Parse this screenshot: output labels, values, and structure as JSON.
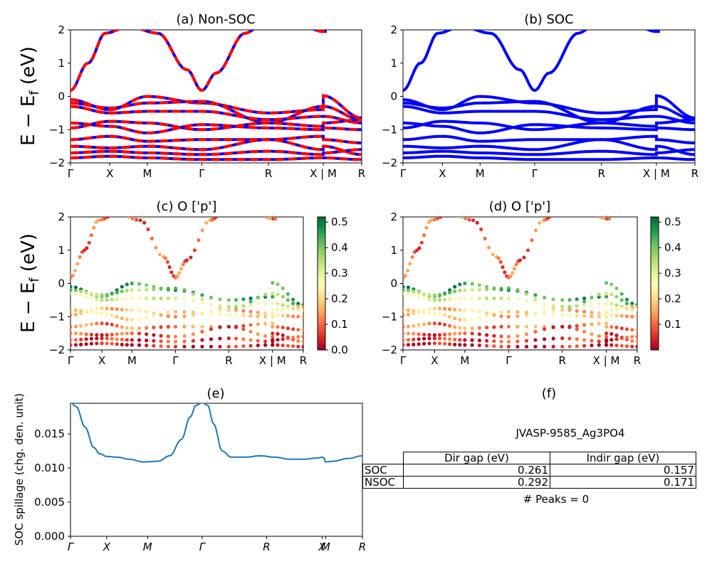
{
  "chart_data": [
    {
      "type": "line",
      "title": "(a) Non-SOC",
      "ylabel": "E − E_f (eV)",
      "ylim": [
        -2,
        2
      ],
      "yticks": [
        "−2",
        "−1",
        "0",
        "1",
        "2"
      ],
      "xticks": [
        "Γ",
        "X",
        "M",
        "Γ",
        "R",
        "X | M",
        "R"
      ],
      "kpath_fraction": [
        0,
        0.135,
        0.264,
        0.451,
        0.68,
        0.868,
        1.0
      ],
      "colors": [
        "#ff0000",
        "#0000ff"
      ],
      "style": "red and blue dashed overlapping bands",
      "bands": [
        {
          "name": "conduction",
          "points": [
            [
              0,
              0.18
            ],
            [
              0.06,
              1.0
            ],
            [
              0.12,
              1.9
            ],
            [
              0.2,
              2.1
            ],
            [
              0.3,
              1.9
            ],
            [
              0.4,
              0.8
            ],
            [
              0.451,
              0.18
            ],
            [
              0.5,
              0.7
            ],
            [
              0.6,
              1.9
            ],
            [
              0.65,
              2.1
            ],
            [
              0.8,
              2.1
            ],
            [
              0.868,
              1.95
            ],
            [
              0.88,
              1.95
            ]
          ]
        },
        {
          "name": "vb1",
          "points": [
            [
              0,
              -0.1
            ],
            [
              0.135,
              -0.4
            ],
            [
              0.264,
              0.0
            ],
            [
              0.451,
              -0.2
            ],
            [
              0.68,
              -0.5
            ],
            [
              0.868,
              -0.4
            ],
            [
              0.868,
              0.02
            ],
            [
              1.0,
              -0.65
            ]
          ]
        },
        {
          "name": "vb2",
          "points": [
            [
              0,
              -0.2
            ],
            [
              0.135,
              -0.35
            ],
            [
              0.264,
              -0.2
            ],
            [
              0.451,
              -0.15
            ],
            [
              0.68,
              -0.8
            ],
            [
              0.868,
              -0.3
            ],
            [
              0.868,
              -0.3
            ],
            [
              1.0,
              -0.7
            ]
          ]
        },
        {
          "name": "vb3",
          "points": [
            [
              0,
              -0.3
            ],
            [
              0.135,
              -0.5
            ],
            [
              0.264,
              -0.45
            ],
            [
              0.451,
              -0.45
            ],
            [
              0.68,
              -0.7
            ],
            [
              0.868,
              -0.6
            ],
            [
              0.868,
              -0.6
            ],
            [
              1.0,
              -0.8
            ]
          ]
        },
        {
          "name": "vb4",
          "points": [
            [
              0,
              -0.8
            ],
            [
              0.135,
              -0.9
            ],
            [
              0.264,
              -1.1
            ],
            [
              0.451,
              -0.85
            ],
            [
              0.68,
              -0.95
            ],
            [
              0.868,
              -1.0
            ],
            [
              0.868,
              -0.8
            ],
            [
              1.0,
              -0.7
            ]
          ]
        },
        {
          "name": "vb5",
          "points": [
            [
              0,
              -0.95
            ],
            [
              0.135,
              -0.75
            ],
            [
              0.264,
              -0.8
            ],
            [
              0.451,
              -1.0
            ],
            [
              0.68,
              -0.8
            ],
            [
              0.868,
              -0.9
            ],
            [
              0.868,
              -0.95
            ],
            [
              1.0,
              -1.0
            ]
          ]
        },
        {
          "name": "vb6",
          "points": [
            [
              0,
              -1.3
            ],
            [
              0.135,
              -1.2
            ],
            [
              0.264,
              -1.35
            ],
            [
              0.451,
              -1.3
            ],
            [
              0.68,
              -1.3
            ],
            [
              0.868,
              -1.2
            ],
            [
              0.868,
              -1.3
            ],
            [
              1.0,
              -1.4
            ]
          ]
        },
        {
          "name": "vb7",
          "points": [
            [
              0,
              -1.5
            ],
            [
              0.135,
              -1.55
            ],
            [
              0.264,
              -1.5
            ],
            [
              0.451,
              -1.6
            ],
            [
              0.68,
              -1.3
            ],
            [
              0.868,
              -1.6
            ],
            [
              0.868,
              -1.5
            ],
            [
              1.0,
              -1.75
            ]
          ]
        },
        {
          "name": "vb8",
          "points": [
            [
              0,
              -1.7
            ],
            [
              0.135,
              -1.65
            ],
            [
              0.264,
              -1.7
            ],
            [
              0.451,
              -1.75
            ],
            [
              0.68,
              -1.65
            ],
            [
              0.868,
              -1.75
            ],
            [
              0.868,
              -1.7
            ],
            [
              1.0,
              -1.6
            ]
          ]
        },
        {
          "name": "vb9",
          "points": [
            [
              0,
              -1.85
            ],
            [
              0.135,
              -1.8
            ],
            [
              0.264,
              -1.85
            ],
            [
              0.451,
              -1.9
            ],
            [
              0.68,
              -1.9
            ],
            [
              0.868,
              -1.85
            ],
            [
              0.868,
              -1.85
            ],
            [
              1.0,
              -1.9
            ]
          ]
        }
      ]
    },
    {
      "type": "line",
      "title": "(b) SOC",
      "ylim": [
        -2,
        2
      ],
      "yticks": [
        "−2",
        "−1",
        "0",
        "1",
        "2"
      ],
      "xticks": [
        "Γ",
        "X",
        "M",
        "Γ",
        "R",
        "X | M",
        "R"
      ],
      "kpath_fraction": [
        0,
        0.135,
        0.264,
        0.451,
        0.68,
        0.868,
        1.0
      ],
      "colors": [
        "#0000ff"
      ],
      "bands": "same dispersion as (a), single blue color"
    },
    {
      "type": "scatter",
      "title": "(c)  O ['p']",
      "ylabel": "E − E_f (eV)",
      "ylim": [
        -2,
        2
      ],
      "yticks": [
        "−2",
        "−1",
        "0",
        "1",
        "2"
      ],
      "xticks": [
        "Γ",
        "X",
        "M",
        "Γ",
        "R",
        "X | M",
        "R"
      ],
      "kpath_fraction": [
        0,
        0.135,
        0.264,
        0.451,
        0.68,
        0.868,
        1.0
      ],
      "colormap": "RdYlGn",
      "colorbar_ticks": [
        "0.0",
        "0.1",
        "0.2",
        "0.3",
        "0.4",
        "0.5"
      ],
      "colorbar_range": [
        0.0,
        0.52
      ],
      "weights_by_band": {
        "conduction": 0.1,
        "vb1": 0.45,
        "vb2": 0.38,
        "vb3": 0.3,
        "vb4": 0.22,
        "vb5": 0.18,
        "vb6": 0.12,
        "vb7": 0.08,
        "vb8": 0.06,
        "vb9": 0.03
      }
    },
    {
      "type": "scatter",
      "title": "(d) O ['p']",
      "ylim": [
        -2,
        2
      ],
      "yticks": [
        "−2",
        "−1",
        "0",
        "1",
        "2"
      ],
      "xticks": [
        "Γ",
        "X",
        "M",
        "Γ",
        "R",
        "X | M",
        "R"
      ],
      "kpath_fraction": [
        0,
        0.135,
        0.264,
        0.451,
        0.68,
        0.868,
        1.0
      ],
      "colormap": "RdYlGn",
      "colorbar_ticks": [
        "0.1",
        "0.2",
        "0.3",
        "0.4",
        "0.5"
      ],
      "colorbar_range": [
        0.0,
        0.52
      ]
    },
    {
      "type": "line",
      "title": "(e)",
      "ylabel": "SOC spillage (chg. den. unit)",
      "ylim": [
        0,
        0.0195
      ],
      "yticks": [
        "0.000",
        "0.005",
        "0.010",
        "0.015"
      ],
      "xticks": [
        "Γ",
        "X",
        "M",
        "Γ",
        "R",
        "X",
        "M",
        "R"
      ],
      "kpath_fraction": [
        0,
        0.124,
        0.264,
        0.451,
        0.672,
        0.862,
        0.874,
        1.0
      ],
      "color": "#1f77b4",
      "x": [
        0,
        0.02,
        0.05,
        0.08,
        0.1,
        0.124,
        0.16,
        0.2,
        0.25,
        0.3,
        0.34,
        0.38,
        0.41,
        0.43,
        0.451,
        0.47,
        0.49,
        0.52,
        0.55,
        0.6,
        0.65,
        0.7,
        0.75,
        0.8,
        0.85,
        0.862,
        0.868,
        0.874,
        0.9,
        0.95,
        1.0
      ],
      "y": [
        0.0196,
        0.019,
        0.016,
        0.013,
        0.0121,
        0.0117,
        0.0116,
        0.0113,
        0.0109,
        0.011,
        0.0118,
        0.0142,
        0.0175,
        0.0192,
        0.0196,
        0.0192,
        0.0165,
        0.0125,
        0.0116,
        0.0116,
        0.0118,
        0.0116,
        0.0113,
        0.0113,
        0.0115,
        0.0116,
        0.0115,
        0.0109,
        0.011,
        0.0114,
        0.0118
      ]
    }
  ],
  "panel_f": {
    "title": "(f)",
    "material": "JVASP-9585_Ag3PO4",
    "table": {
      "header": [
        "Dir gap (eV)",
        "Indir gap (eV)"
      ],
      "rows": [
        {
          "label": "SOC",
          "dir": "0.261",
          "indir": "0.157"
        },
        {
          "label": "NSOC",
          "dir": "0.292",
          "indir": "0.171"
        }
      ]
    },
    "peaks": "# Peaks = 0"
  }
}
